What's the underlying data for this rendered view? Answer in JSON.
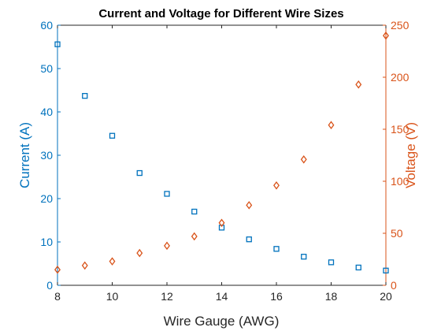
{
  "chart_data": {
    "type": "scatter",
    "title": "Current and Voltage for Different Wire Sizes",
    "xlabel": "Wire Gauge (AWG)",
    "ylabel_left": "Current (A)",
    "ylabel_right": "Voltage (V)",
    "xlim": [
      8,
      20
    ],
    "ylim_left": [
      0,
      60
    ],
    "ylim_right": [
      0,
      250
    ],
    "xticks": [
      8,
      10,
      12,
      14,
      16,
      18,
      20
    ],
    "yticks_left": [
      0,
      10,
      20,
      30,
      40,
      50,
      60
    ],
    "yticks_right": [
      0,
      50,
      100,
      150,
      200,
      250
    ],
    "grid": false,
    "series": [
      {
        "axis": "left",
        "marker": "square",
        "color": "#0072BD",
        "x": [
          8,
          9,
          10,
          11,
          12,
          13,
          14,
          15,
          16,
          17,
          18,
          19,
          20
        ],
        "y": [
          55.6,
          43.7,
          34.5,
          25.9,
          21.1,
          17.0,
          13.3,
          10.6,
          8.4,
          6.6,
          5.3,
          4.1,
          3.4
        ]
      },
      {
        "axis": "right",
        "marker": "diamond",
        "color": "#D95319",
        "x": [
          8,
          9,
          10,
          11,
          12,
          13,
          14,
          15,
          16,
          17,
          18,
          19,
          20
        ],
        "y": [
          15,
          19,
          23,
          31,
          38,
          47,
          60,
          77,
          96,
          121,
          154,
          193,
          240
        ]
      }
    ]
  }
}
